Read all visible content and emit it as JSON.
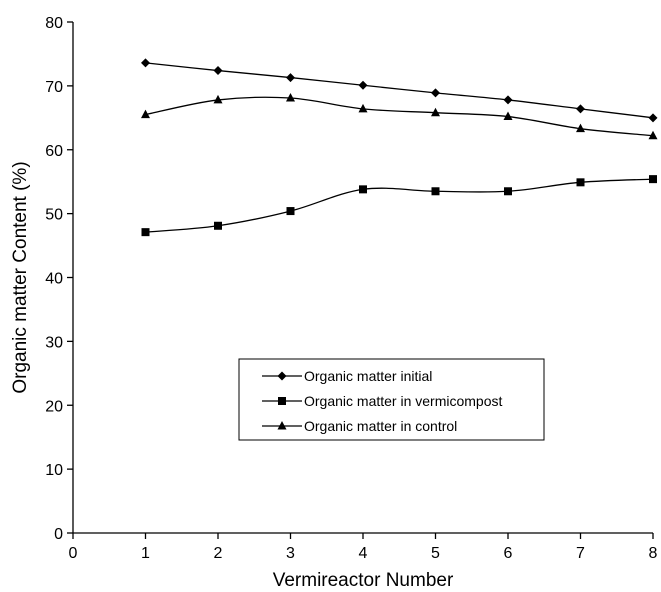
{
  "chart_data": {
    "type": "line",
    "title": "",
    "xlabel": "Vermireactor Number",
    "ylabel": "Organic matter Content (%)",
    "xlim": [
      0,
      8
    ],
    "ylim": [
      0,
      80
    ],
    "xticks": [
      0,
      1,
      2,
      3,
      4,
      5,
      6,
      7,
      8
    ],
    "yticks": [
      0,
      10,
      20,
      30,
      40,
      50,
      60,
      70,
      80
    ],
    "x": [
      1,
      2,
      3,
      4,
      5,
      6,
      7,
      8
    ],
    "grid": false,
    "legend_position": "center",
    "series": [
      {
        "name": "Organic matter initial",
        "marker": "diamond",
        "values": [
          73.6,
          72.4,
          71.3,
          70.1,
          68.9,
          67.8,
          66.4,
          65.0
        ]
      },
      {
        "name": "Organic matter in vermicompost",
        "marker": "square",
        "values": [
          47.1,
          48.1,
          50.4,
          53.8,
          53.5,
          53.5,
          54.9,
          55.4
        ]
      },
      {
        "name": "Organic matter in control",
        "marker": "triangle",
        "values": [
          65.5,
          67.8,
          68.1,
          66.4,
          65.8,
          65.2,
          63.3,
          62.2
        ]
      }
    ]
  }
}
